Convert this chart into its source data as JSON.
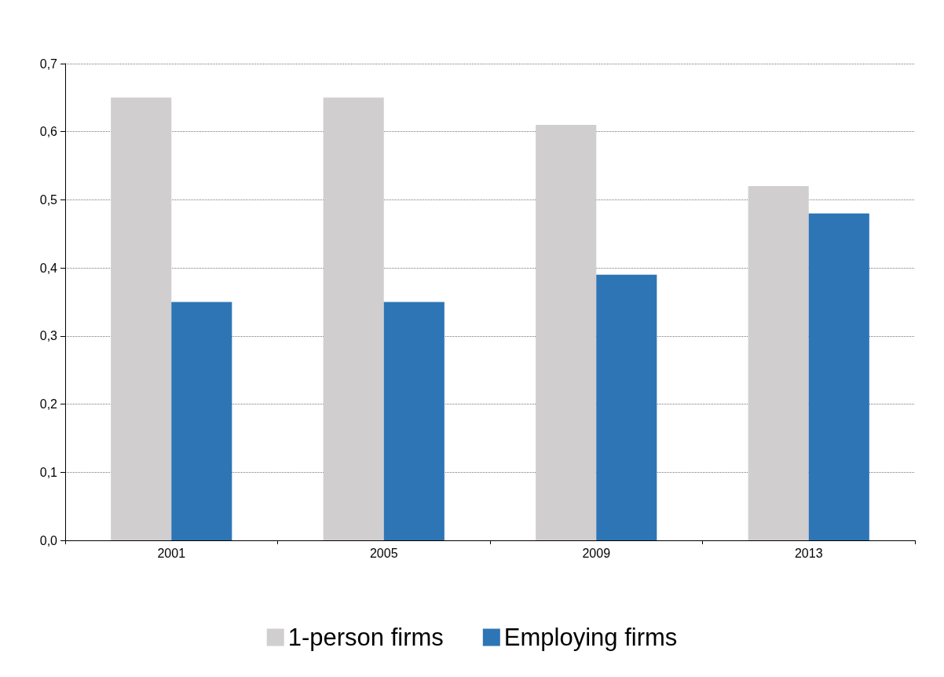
{
  "chart_data": {
    "type": "bar",
    "categories": [
      "2001",
      "2005",
      "2009",
      "2013"
    ],
    "series": [
      {
        "name": "1-person firms",
        "color": "#d0cece",
        "values": [
          0.65,
          0.65,
          0.61,
          0.52
        ]
      },
      {
        "name": "Employing firms",
        "color": "#2e75b6",
        "values": [
          0.35,
          0.35,
          0.39,
          0.48
        ]
      }
    ],
    "ylim": [
      0,
      0.7
    ],
    "yticks": [
      {
        "value": 0,
        "label": "0,0"
      },
      {
        "value": 0.1,
        "label": "0,1"
      },
      {
        "value": 0.2,
        "label": "0,2"
      },
      {
        "value": 0.3,
        "label": "0,3"
      },
      {
        "value": 0.4,
        "label": "0,4"
      },
      {
        "value": 0.5,
        "label": "0,5"
      },
      {
        "value": 0.6,
        "label": "0,6"
      },
      {
        "value": 0.7,
        "label": "0,7"
      }
    ],
    "grid": "y",
    "legend": "bottom"
  }
}
